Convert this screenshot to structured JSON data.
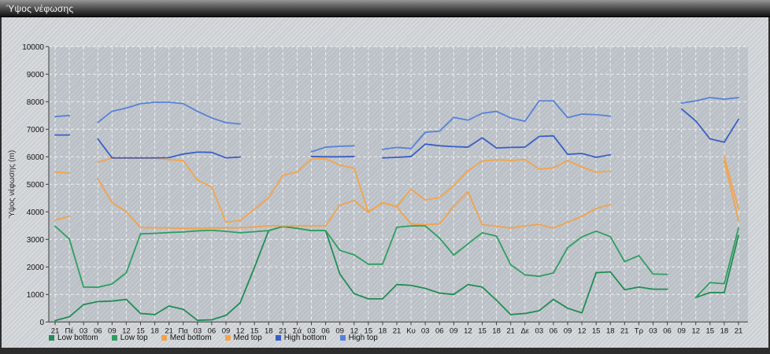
{
  "window": {
    "title": "Ύψος νέφωσης"
  },
  "chart_data": {
    "type": "line",
    "title": "Ύψος νέφωσης",
    "xlabel": "",
    "ylabel": "Ύψος νέφωσης (m)",
    "ylim": [
      0,
      10000
    ],
    "ytick_step": 1000,
    "grid": true,
    "legend_position": "bottom-left",
    "x_labels": [
      "21",
      "Πέ",
      "03",
      "06",
      "09",
      "12",
      "15",
      "18",
      "21",
      "Πα",
      "03",
      "06",
      "09",
      "12",
      "15",
      "18",
      "21",
      "Σά",
      "03",
      "06",
      "09",
      "12",
      "15",
      "18",
      "21",
      "Κυ",
      "03",
      "06",
      "09",
      "12",
      "15",
      "18",
      "21",
      "Δε",
      "03",
      "06",
      "09",
      "12",
      "15",
      "18",
      "21",
      "Τρ",
      "03",
      "06",
      "09",
      "12",
      "15",
      "18",
      "21"
    ],
    "series": [
      {
        "name": "Low bottom",
        "color": "#218c55",
        "values": [
          50,
          190,
          630,
          740,
          760,
          820,
          310,
          270,
          580,
          460,
          60,
          80,
          240,
          700,
          1980,
          3320,
          3470,
          3400,
          3320,
          3320,
          1740,
          1030,
          840,
          840,
          1360,
          1330,
          1220,
          1050,
          1000,
          1360,
          1270,
          790,
          270,
          310,
          410,
          820,
          500,
          330,
          1790,
          1820,
          1170,
          1270,
          1190,
          1190,
          null,
          890,
          1070,
          1070,
          3140
        ]
      },
      {
        "name": "Low top",
        "color": "#2e9e60",
        "values": [
          3480,
          3010,
          1270,
          1260,
          1380,
          1790,
          3200,
          3220,
          3250,
          3270,
          3310,
          3330,
          3290,
          3240,
          3280,
          3320,
          3470,
          3400,
          3320,
          3320,
          2600,
          2440,
          2100,
          2100,
          3440,
          3490,
          3490,
          3050,
          2430,
          2840,
          3240,
          3120,
          2080,
          1710,
          1660,
          1780,
          2700,
          3090,
          3300,
          3100,
          2190,
          2410,
          1740,
          1730,
          null,
          890,
          1430,
          1390,
          3410
        ]
      },
      {
        "name": "Med bottom",
        "color": "#f2a24c",
        "values": [
          3700,
          3840,
          null,
          5190,
          4340,
          4000,
          3430,
          3420,
          3420,
          3400,
          3400,
          3410,
          3420,
          3420,
          3450,
          3490,
          3490,
          3490,
          3490,
          3490,
          4240,
          4410,
          3980,
          4330,
          4180,
          3560,
          3540,
          3560,
          4200,
          4730,
          3530,
          3480,
          3410,
          3490,
          3540,
          3410,
          3620,
          3840,
          4120,
          4270,
          null,
          null,
          null,
          null,
          null,
          null,
          null,
          5840,
          3690
        ]
      },
      {
        "name": "Med top",
        "color": "#f4a44b",
        "values": [
          5450,
          5400,
          null,
          5800,
          5950,
          5950,
          5950,
          5950,
          5900,
          5860,
          5150,
          4900,
          3620,
          3690,
          4100,
          4520,
          5330,
          5450,
          5920,
          5930,
          5700,
          5580,
          4000,
          4340,
          4190,
          4820,
          4430,
          4520,
          4950,
          5500,
          5840,
          5890,
          5870,
          5900,
          5550,
          5600,
          5860,
          5630,
          5440,
          5480,
          null,
          null,
          null,
          null,
          null,
          null,
          null,
          6000,
          4120
        ]
      },
      {
        "name": "High bottom",
        "color": "#3a5ec6",
        "values": [
          6790,
          6790,
          null,
          6650,
          5960,
          5960,
          5960,
          5960,
          5970,
          6100,
          6170,
          6160,
          5960,
          5990,
          null,
          null,
          null,
          null,
          6010,
          6000,
          6000,
          6010,
          null,
          5960,
          5980,
          6010,
          6460,
          6400,
          6370,
          6350,
          6690,
          6320,
          6340,
          6350,
          6740,
          6760,
          6090,
          6120,
          5980,
          6075,
          null,
          null,
          null,
          null,
          7740,
          7300,
          6650,
          6530,
          7360
        ]
      },
      {
        "name": "High top",
        "color": "#5781d8",
        "values": [
          7460,
          7500,
          null,
          7250,
          7650,
          7770,
          7930,
          7980,
          7980,
          7930,
          7650,
          7410,
          7240,
          7190,
          null,
          null,
          null,
          null,
          6180,
          6350,
          6380,
          6400,
          null,
          6270,
          6340,
          6300,
          6890,
          6930,
          7430,
          7330,
          7580,
          7650,
          7410,
          7290,
          8030,
          8030,
          7420,
          7550,
          7530,
          7475,
          null,
          null,
          null,
          null,
          7950,
          8030,
          8150,
          8090,
          8150
        ]
      }
    ]
  }
}
